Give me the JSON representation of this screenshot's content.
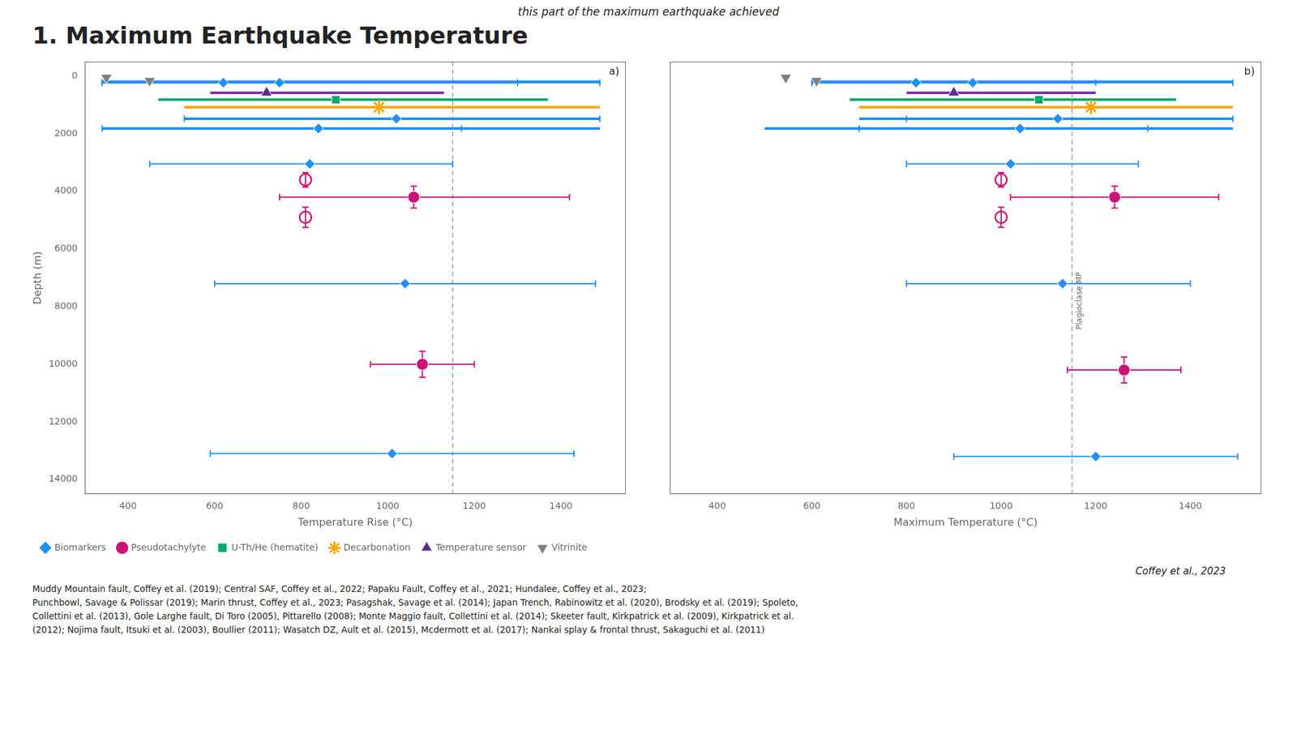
{
  "title": "1. Maximum Earthquake Temperature",
  "subtitle": "this part of the maximum earthquake achieved",
  "annotations": [
    {
      "text": "Coffey et al., 2023"
    },
    {
      "text": "Muddy Mountain fault, Coffey et al. (2019); Central SAF, Coffey et al., 2022; Papaku Fault, Coffey et al., 2021; Hundalee, Coffey et al., 2023;\nPunchbowl,  Savage & Polissar (2019); Marin thrust, Coffey et al., 2023; Pasagshak, Savage et al. (2014); Japan Trench, Rabinowitz et al. (2020), Brodsky et al. (2019); Spoleto,\nCollettini et al. (2013),  Gole Larghe fault, Di Toro (2005), Pittarello (2008); Monte Maggio fault, Collettini et al. (2014); Skeeter fault, Kirkpatrick et al. (2009), Kirkpatrick et al.\n(2012); Nojima fault, Itsuki et al. (2003), Boullier (2011); Wasatch DZ, Ault et al. (2015), Mcdermott et al. (2017); Nankai splay & frontal thrust, Sakaguchi et al. (2011)"
    }
  ],
  "chart_data": [
    {
      "type": "scatter",
      "xlabel": "Temperature Rise (°C)",
      "ylabel": "Depth (m)",
      "xlim": [
        300,
        1550
      ],
      "xticks": [
        400,
        600,
        800,
        1000,
        1200,
        1400
      ],
      "ylim": [
        14500,
        -500
      ],
      "yticks": [
        0,
        2000,
        4000,
        6000,
        8000,
        10000,
        12000,
        14000
      ],
      "grid": false,
      "legend": "bottom",
      "annotations": [
        {
          "text": "a)"
        }
      ],
      "series": [
        {
          "type": "vline",
          "x": [
            1150
          ],
          "color": "#999999",
          "line_style": "dashed"
        },
        {
          "type": "range",
          "orientation": "horizontal",
          "colors": [
            "#1e90ff",
            "#7b2fbe",
            "#00aa66",
            "#ffa500",
            "#1e90ff",
            "#1e90ff"
          ],
          "values": [
            200,
            580,
            820,
            1080,
            1480,
            1820
          ],
          "x_min": [
            340,
            590,
            470,
            530,
            530,
            340
          ],
          "x_max": [
            1490,
            1130,
            1370,
            1490,
            1490,
            1490
          ]
        },
        {
          "name": "Biomarkers",
          "marker": "diamond",
          "color": "#1e90ff",
          "x": [
            620,
            750,
            820,
            840,
            1020,
            1040,
            1010
          ],
          "values": [
            230,
            230,
            3050,
            1820,
            1480,
            7200,
            13100
          ],
          "xerr_lo": [
            280,
            410,
            370,
            500,
            490,
            440,
            420
          ],
          "xerr_hi": [
            870,
            550,
            330,
            330,
            470,
            440,
            420
          ]
        },
        {
          "marker": "circle_open",
          "color": "#cc1177",
          "x": [
            810,
            810
          ],
          "values": [
            3600,
            4900
          ],
          "xerr_lo": [
            0,
            0
          ],
          "xerr_hi": [
            0,
            0
          ],
          "yerr": [
            250,
            350
          ]
        },
        {
          "name": "Pseudotachylyte",
          "marker": "circle",
          "color": "#cc1177",
          "x": [
            1060,
            1080
          ],
          "values": [
            4200,
            10000
          ],
          "xerr_lo": [
            310,
            120
          ],
          "xerr_hi": [
            360,
            120
          ],
          "yerr": [
            380,
            450
          ]
        },
        {
          "name": "U-Th/He (hematite)",
          "marker": "square",
          "color": "#00aa66",
          "x": [
            880
          ],
          "values": [
            820
          ]
        },
        {
          "name": "Decarbonation",
          "marker": "star",
          "color": "#ffa500",
          "x": [
            980
          ],
          "values": [
            1080
          ]
        },
        {
          "name": "Temperature sensor",
          "marker": "triangle",
          "color": "#5b2d8e",
          "x": [
            720
          ],
          "values": [
            580
          ]
        },
        {
          "name": "Vitrinite",
          "marker": "triangle_down",
          "color": "#808080",
          "x": [
            350,
            450
          ],
          "values": [
            50,
            160
          ]
        }
      ]
    },
    {
      "type": "scatter",
      "xlabel": "Maximum Temperature (°C)",
      "xlim": [
        300,
        1550
      ],
      "xticks": [
        400,
        600,
        800,
        1000,
        1200,
        1400
      ],
      "ylim": [
        14500,
        -500
      ],
      "yticks": [
        0,
        2000,
        4000,
        6000,
        8000,
        10000,
        12000,
        14000
      ],
      "grid": false,
      "tick_labels": "x",
      "annotations": [
        {
          "text": "b)"
        },
        {
          "text": "Plagioclase MP",
          "x": 1150,
          "y": 7800
        }
      ],
      "series": [
        {
          "type": "vline",
          "x": [
            1150
          ],
          "color": "#999999",
          "line_style": "dashed"
        },
        {
          "type": "range",
          "orientation": "horizontal",
          "colors": [
            "#1e90ff",
            "#7b2fbe",
            "#00aa66",
            "#ffa500",
            "#1e90ff",
            "#1e90ff"
          ],
          "values": [
            200,
            580,
            820,
            1080,
            1480,
            1820
          ],
          "x_min": [
            600,
            800,
            680,
            700,
            700,
            500
          ],
          "x_max": [
            1490,
            1200,
            1370,
            1490,
            1490,
            1490
          ]
        },
        {
          "name": "Biomarkers",
          "marker": "diamond",
          "color": "#1e90ff",
          "x": [
            820,
            940,
            1020,
            1040,
            1120,
            1130,
            1200
          ],
          "values": [
            230,
            230,
            3050,
            1820,
            1480,
            7200,
            13200
          ],
          "xerr_lo": [
            220,
            340,
            220,
            340,
            320,
            330,
            300
          ],
          "xerr_hi": [
            670,
            260,
            270,
            270,
            370,
            270,
            300
          ]
        },
        {
          "marker": "circle_open",
          "color": "#cc1177",
          "x": [
            1000,
            1000
          ],
          "values": [
            3600,
            4900
          ],
          "xerr_lo": [
            0,
            0
          ],
          "xerr_hi": [
            0,
            0
          ],
          "yerr": [
            250,
            350
          ]
        },
        {
          "name": "Pseudotachylyte",
          "marker": "circle",
          "color": "#cc1177",
          "x": [
            1240,
            1260
          ],
          "values": [
            4200,
            10200
          ],
          "xerr_lo": [
            220,
            120
          ],
          "xerr_hi": [
            220,
            120
          ],
          "yerr": [
            380,
            450
          ]
        },
        {
          "name": "U-Th/He (hematite)",
          "marker": "square",
          "color": "#00aa66",
          "x": [
            1080
          ],
          "values": [
            820
          ]
        },
        {
          "name": "Decarbonation",
          "marker": "star",
          "color": "#ffa500",
          "x": [
            1190
          ],
          "values": [
            1080
          ]
        },
        {
          "name": "Temperature sensor",
          "marker": "triangle",
          "color": "#5b2d8e",
          "x": [
            900
          ],
          "values": [
            580
          ]
        },
        {
          "name": "Vitrinite",
          "marker": "triangle_down",
          "color": "#808080",
          "x": [
            545,
            610
          ],
          "values": [
            50,
            160
          ]
        }
      ]
    }
  ]
}
